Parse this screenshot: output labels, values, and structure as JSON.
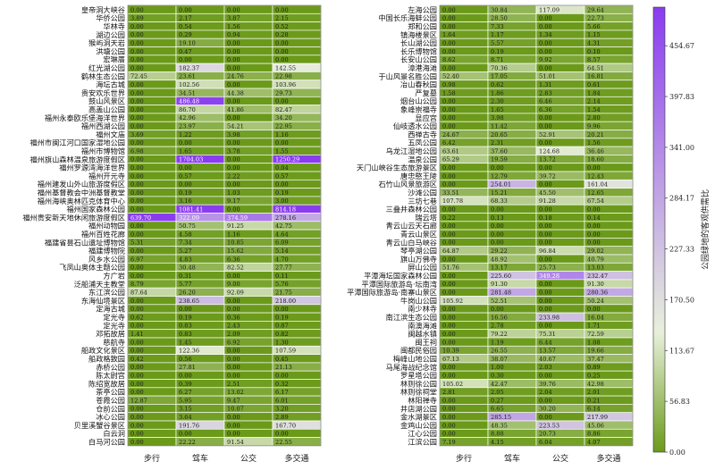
{
  "chart_data": {
    "type": "heatmap",
    "columns": [
      "步行",
      "驾车",
      "公交",
      "多交通"
    ],
    "colorbar": {
      "label": "公园绿地的客观供需比",
      "min": 0.0,
      "max": 497.84,
      "ticks": [
        "454.67",
        "397.83",
        "341.00",
        "284.17",
        "227.33",
        "170.50",
        "113.67",
        "56.83",
        "0.00"
      ],
      "tick_values": [
        454.67,
        397.83,
        341.0,
        284.17,
        227.33,
        170.5,
        113.67,
        56.83,
        0.0
      ],
      "colors": [
        "#6b9a1a",
        "#e8f0dc",
        "#8a3cf0"
      ]
    },
    "panels": [
      {
        "rows": [
          {
            "name": "皇帝洞大峡谷",
            "values": [
              "0.00",
              "0.00",
              "0.00",
              "0.00"
            ]
          },
          {
            "name": "华侨公园",
            "values": [
              "3.89",
              "2.17",
              "3.87",
              "2.15"
            ]
          },
          {
            "name": "华林寺",
            "values": [
              "0.00",
              "0.54",
              "1.56",
              "0.52"
            ]
          },
          {
            "name": "湖边公园",
            "values": [
              "0.00",
              "0.29",
              "0.94",
              "0.28"
            ]
          },
          {
            "name": "猴屿洞天岩",
            "values": [
              "0.00",
              "19.10",
              "0.00",
              "0.00"
            ]
          },
          {
            "name": "洪塘公园",
            "values": [
              "0.00",
              "0.47",
              "0.00",
              "0.00"
            ]
          },
          {
            "name": "宏琳厝",
            "values": [
              "0.00",
              "0.00",
              "0.00",
              "0.00"
            ]
          },
          {
            "name": "红光湖公园",
            "values": [
              "0.00",
              "182.37",
              "0.00",
              "142.55"
            ]
          },
          {
            "name": "鹤林生态公园",
            "values": [
              "72.45",
              "23.61",
              "24.76",
              "22.98"
            ]
          },
          {
            "name": "海坛古城",
            "values": [
              "0.00",
              "102.56",
              "0.00",
              "103.96"
            ]
          },
          {
            "name": "贵安欢乐世界",
            "values": [
              "0.00",
              "34.51",
              "44.38",
              "29.73"
            ]
          },
          {
            "name": "鼓山风景区",
            "values": [
              "0.00",
              "486.48",
              "0.00",
              "0.00"
            ]
          },
          {
            "name": "高盖山公园",
            "values": [
              "0.00",
              "86.70",
              "41.86",
              "82.47"
            ]
          },
          {
            "name": "福州永泰欧乐堡海洋世界",
            "values": [
              "0.00",
              "42.96",
              "0.00",
              "34.20"
            ]
          },
          {
            "name": "福州西湖公园",
            "values": [
              "0.00",
              "23.97",
              "54.21",
              "22.95"
            ]
          },
          {
            "name": "福州文庙",
            "values": [
              "3.69",
              "1.22",
              "3.98",
              "1.16"
            ]
          },
          {
            "name": "福州市闽江河口国家湿地公园",
            "values": [
              "0.00",
              "0.00",
              "0.00",
              "0.00"
            ]
          },
          {
            "name": "福州市博物馆",
            "values": [
              "6.98",
              "1.65",
              "3.78",
              "1.55"
            ]
          },
          {
            "name": "福州旗山森林温泉旅游度假区",
            "values": [
              "0.00",
              "1704.03",
              "0.00",
              "1250.29"
            ]
          },
          {
            "name": "福州罗源湾海洋世界",
            "values": [
              "0.00",
              "0.00",
              "0.00",
              "0.04"
            ]
          },
          {
            "name": "福州开元寺",
            "values": [
              "0.00",
              "0.57",
              "2.22",
              "0.57"
            ]
          },
          {
            "name": "福州建发山外山旅游度假区",
            "values": [
              "0.00",
              "0.00",
              "0.00",
              "0.00"
            ]
          },
          {
            "name": "福州基督教会中洲基督教堂",
            "values": [
              "0.00",
              "0.19",
              "1.03",
              "0.19"
            ]
          },
          {
            "name": "福州海峡奥林匹克体育中心",
            "values": [
              "0.00",
              "3.16",
              "9.17",
              "3.00"
            ]
          },
          {
            "name": "福州国家森林公园",
            "values": [
              "0.00",
              "1081.41",
              "0.00",
              "814.18"
            ]
          },
          {
            "name": "福州贵安新天地休闲旅游度假区",
            "values": [
              "639.70",
              "322.09",
              "374.59",
              "278.16"
            ]
          },
          {
            "name": "福州动物园",
            "values": [
              "0.00",
              "50.75",
              "91.25",
              "42.75"
            ]
          },
          {
            "name": "福州百姓花廊",
            "values": [
              "0.00",
              "4.58",
              "1.16",
              "4.64"
            ]
          },
          {
            "name": "福建省昙石山遗址博物馆",
            "values": [
              "5.31",
              "7.34",
              "10.85",
              "6.09"
            ]
          },
          {
            "name": "福建博物院",
            "values": [
              "0.00",
              "5.27",
              "15.62",
              "5.14"
            ]
          },
          {
            "name": "风乡水公园",
            "values": [
              "6.97",
              "4.83",
              "6.36",
              "4.70"
            ]
          },
          {
            "name": "飞凤山奥体主题公园",
            "values": [
              "0.00",
              "30.48",
              "82.52",
              "27.77"
            ]
          },
          {
            "name": "方广岩",
            "values": [
              "0.00",
              "0.31",
              "0.00",
              "0.11"
            ]
          },
          {
            "name": "泛船浦天主教堂",
            "values": [
              "8.79",
              "5.77",
              "9.00",
              "5.76"
            ]
          },
          {
            "name": "东江滨公园",
            "values": [
              "87.64",
              "26.20",
              "92.09",
              "21.75"
            ]
          },
          {
            "name": "东海仙境景区",
            "values": [
              "0.00",
              "238.65",
              "0.00",
              "218.00"
            ]
          },
          {
            "name": "定海古城",
            "values": [
              "0.00",
              "0.00",
              "0.00",
              "0.00"
            ]
          },
          {
            "name": "定光寺",
            "values": [
              "0.62",
              "0.19",
              "0.36",
              "0.19"
            ]
          },
          {
            "name": "定光寺",
            "values": [
              "0.00",
              "0.83",
              "2.43",
              "0.87"
            ]
          },
          {
            "name": "邓拓故居",
            "values": [
              "1.41",
              "0.83",
              "2.09",
              "0.82"
            ]
          },
          {
            "name": "慈航寺",
            "values": [
              "0.00",
              "1.45",
              "6.92",
              "1.30"
            ]
          },
          {
            "name": "船政文化景区",
            "values": [
              "0.00",
              "122.36",
              "0.00",
              "107.59"
            ]
          },
          {
            "name": "船政格致园",
            "values": [
              "0.42",
              "0.56",
              "0.00",
              "0.45"
            ]
          },
          {
            "name": "赤桥公园",
            "values": [
              "0.00",
              "27.81",
              "0.00",
              "21.13"
            ]
          },
          {
            "name": "陈太尉宫",
            "values": [
              "0.00",
              "0.00",
              "0.00",
              "0.00"
            ]
          },
          {
            "name": "陈绍宽故居",
            "values": [
              "0.00",
              "0.39",
              "2.51",
              "0.32"
            ]
          },
          {
            "name": "茶亭公园",
            "values": [
              "0.00",
              "6.27",
              "13.02",
              "6.17"
            ]
          },
          {
            "name": "苍霞公园",
            "values": [
              "12.87",
              "5.95",
              "9.47",
              "6.01"
            ]
          },
          {
            "name": "仓前公园",
            "values": [
              "0.00",
              "3.15",
              "10.07",
              "3.20"
            ]
          },
          {
            "name": "冰心公园",
            "values": [
              "0.00",
              "3.64",
              "0.00",
              "2.89"
            ]
          },
          {
            "name": "贝里溪蟹谷景区",
            "values": [
              "0.00",
              "191.76",
              "0.00",
              "167.70"
            ]
          },
          {
            "name": "白云洞",
            "values": [
              "0.00",
              "0.00",
              "0.00",
              "0.00"
            ]
          },
          {
            "name": "白马河公园",
            "values": [
              "0.00",
              "22.22",
              "91.54",
              "22.55"
            ]
          }
        ]
      },
      {
        "rows": [
          {
            "name": "左海公园",
            "values": [
              "0.00",
              "30.84",
              "117.09",
              "29.64"
            ]
          },
          {
            "name": "中国长乐海蚌公园",
            "values": [
              "0.00",
              "28.50",
              "0.00",
              "22.73"
            ]
          },
          {
            "name": "郑和公园",
            "values": [
              "0.00",
              "7.33",
              "0.00",
              "5.66"
            ]
          },
          {
            "name": "镇海楼景区",
            "values": [
              "1.64",
              "1.17",
              "1.34",
              "1.15"
            ]
          },
          {
            "name": "长山湖公园",
            "values": [
              "0.00",
              "5.57",
              "0.00",
              "4.31"
            ]
          },
          {
            "name": "长乐博物馆",
            "values": [
              "0.00",
              "0.19",
              "0.00",
              "0.10"
            ]
          },
          {
            "name": "长安山公园",
            "values": [
              "8.62",
              "8.71",
              "9.92",
              "8.57"
            ]
          },
          {
            "name": "漳港海滩",
            "values": [
              "0.00",
              "70.36",
              "0.00",
              "64.51"
            ]
          },
          {
            "name": "于山风景名胜公园",
            "values": [
              "52.40",
              "17.05",
              "51.01",
              "16.81"
            ]
          },
          {
            "name": "冶山春秋园",
            "values": [
              "0.98",
              "0.62",
              "1.31",
              "0.61"
            ]
          },
          {
            "name": "严复墓",
            "values": [
              "1.58",
              "1.86",
              "2.83",
              "1.84"
            ]
          },
          {
            "name": "烟台山公园",
            "values": [
              "0.00",
              "2.30",
              "6.46",
              "2.14"
            ]
          },
          {
            "name": "象峰崇福寺",
            "values": [
              "0.00",
              "1.65",
              "6.36",
              "1.54"
            ]
          },
          {
            "name": "显应宫",
            "values": [
              "0.00",
              "3.98",
              "0.00",
              "2.80"
            ]
          },
          {
            "name": "仙岐透水公园",
            "values": [
              "0.00",
              "11.42",
              "0.00",
              "9.96"
            ]
          },
          {
            "name": "西禅古寺",
            "values": [
              "24.67",
              "20.65",
              "52.91",
              "20.21"
            ]
          },
          {
            "name": "五凤公园",
            "values": [
              "6.42",
              "2.31",
              "0.00",
              "1.56"
            ]
          },
          {
            "name": "乌龙江湿地公园",
            "values": [
              "63.61",
              "37.60",
              "124.68",
              "36.46"
            ]
          },
          {
            "name": "温泉公园",
            "values": [
              "65.29",
              "19.59",
              "13.72",
              "18.60"
            ]
          },
          {
            "name": "天门山峡谷生态旅游景区",
            "values": [
              "0.00",
              "0.00",
              "0.00",
              "0.00"
            ]
          },
          {
            "name": "唐忠愍王陵",
            "values": [
              "0.00",
              "12.79",
              "39.72",
              "12.43"
            ]
          },
          {
            "name": "石竹山风景旅游区",
            "values": [
              "0.00",
              "254.01",
              "0.00",
              "161.04"
            ]
          },
          {
            "name": "沙滩公园",
            "values": [
              "33.51",
              "15.21",
              "45.50",
              "12.65"
            ]
          },
          {
            "name": "三坊七巷",
            "values": [
              "107.78",
              "68.33",
              "91.28",
              "67.54"
            ]
          },
          {
            "name": "三叠井森林公园",
            "values": [
              "0.00",
              "0.00",
              "0.00",
              "0.00"
            ]
          },
          {
            "name": "瑞云塔",
            "values": [
              "0.22",
              "0.13",
              "0.18",
              "0.14"
            ]
          },
          {
            "name": "青云山云天石廊",
            "values": [
              "0.00",
              "0.00",
              "0.00",
              "0.00"
            ]
          },
          {
            "name": "青云山景区",
            "values": [
              "0.00",
              "0.00",
              "0.00",
              "0.00"
            ]
          },
          {
            "name": "青云山白马峡谷",
            "values": [
              "0.00",
              "0.00",
              "0.00",
              "0.00"
            ]
          },
          {
            "name": "琴亭湖公园",
            "values": [
              "64.87",
              "29.22",
              "96.84",
              "29.02"
            ]
          },
          {
            "name": "旗山万佛寺",
            "values": [
              "0.00",
              "48.92",
              "0.00",
              "40.79"
            ]
          },
          {
            "name": "屏山公园",
            "values": [
              "51.76",
              "13.17",
              "25.73",
              "13.03"
            ]
          },
          {
            "name": "平潭海坛国家森林公园",
            "values": [
              "0.00",
              "225.60",
              "349.28",
              "232.47"
            ]
          },
          {
            "name": "平潭国际旅游岛·坛南湾",
            "values": [
              "0.00",
              "91.30",
              "0.00",
              "91.30"
            ]
          },
          {
            "name": "平潭国际旅游岛·南寨山景区",
            "values": [
              "0.00",
              "281.48",
              "0.00",
              "280.36"
            ]
          },
          {
            "name": "牛岗山公园",
            "values": [
              "105.92",
              "52.51",
              "0.00",
              "50.24"
            ]
          },
          {
            "name": "南少林寺",
            "values": [
              "0.00",
              "0.00",
              "0.00",
              "0.00"
            ]
          },
          {
            "name": "南江滨生态公园",
            "values": [
              "0.00",
              "16.56",
              "233.98",
              "16.04"
            ]
          },
          {
            "name": "南澳海滩",
            "values": [
              "0.00",
              "2.78",
              "0.00",
              "1.71"
            ]
          },
          {
            "name": "闽越水镇",
            "values": [
              "0.00",
              "79.22",
              "75.31",
              "72.59"
            ]
          },
          {
            "name": "闽王祠",
            "values": [
              "0.00",
              "1.19",
              "6.44",
              "1.08"
            ]
          },
          {
            "name": "闽都民俗园",
            "values": [
              "10.39",
              "26.55",
              "13.57",
              "19.66"
            ]
          },
          {
            "name": "梅峰山地公园",
            "values": [
              "67.13",
              "38.07",
              "40.67",
              "37.47"
            ]
          },
          {
            "name": "马尾海战纪念馆",
            "values": [
              "0.00",
              "1.00",
              "2.03",
              "0.89"
            ]
          },
          {
            "name": "罗星塔公园",
            "values": [
              "0.00",
              "0.30",
              "0.00",
              "0.25"
            ]
          },
          {
            "name": "林则徐公园",
            "values": [
              "105.02",
              "42.47",
              "39.76",
              "42.98"
            ]
          },
          {
            "name": "林则徐祠堂",
            "values": [
              "2.81",
              "2.05",
              "2.04",
              "2.01"
            ]
          },
          {
            "name": "林阳禅寺",
            "values": [
              "0.00",
              "0.27",
              "0.00",
              "0.21"
            ]
          },
          {
            "name": "井店湖公园",
            "values": [
              "0.00",
              "6.65",
              "30.20",
              "6.14"
            ]
          },
          {
            "name": "金水湖景区",
            "values": [
              "0.00",
              "285.15",
              "0.00",
              "217.99"
            ]
          },
          {
            "name": "金鸡山公园",
            "values": [
              "0.00",
              "48.35",
              "223.53",
              "45.06"
            ]
          },
          {
            "name": "江心公园",
            "values": [
              "0.00",
              "8.88",
              "20.73",
              "8.86"
            ]
          },
          {
            "name": "江滨公园",
            "values": [
              "7.19",
              "4.15",
              "6.04",
              "4.07"
            ]
          }
        ]
      }
    ]
  }
}
